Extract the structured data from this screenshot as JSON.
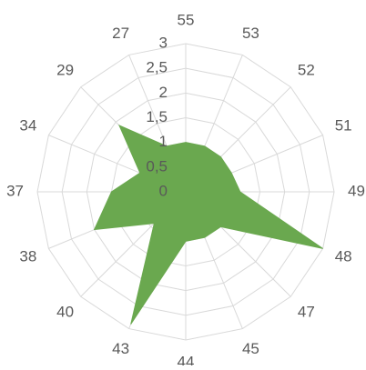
{
  "chart_data": {
    "type": "radar",
    "categories": [
      "55",
      "53",
      "52",
      "51",
      "49",
      "48",
      "47",
      "45",
      "44",
      "43",
      "40",
      "38",
      "37",
      "34",
      "29",
      "27"
    ],
    "values": [
      1,
      1,
      1,
      1,
      1.1,
      3,
      1,
      1,
      1,
      2.9,
      0.9,
      2,
      1.5,
      1,
      1.9,
      1
    ],
    "color": "#6aa84f",
    "ylim": [
      0,
      3
    ],
    "yticks": [
      0,
      {
        "value": 0.5,
        "label": "0,5"
      },
      1,
      {
        "value": 1.5,
        "label": "1,5"
      },
      2,
      {
        "value": 2.5,
        "label": "2,5"
      },
      3
    ],
    "grid": true
  }
}
